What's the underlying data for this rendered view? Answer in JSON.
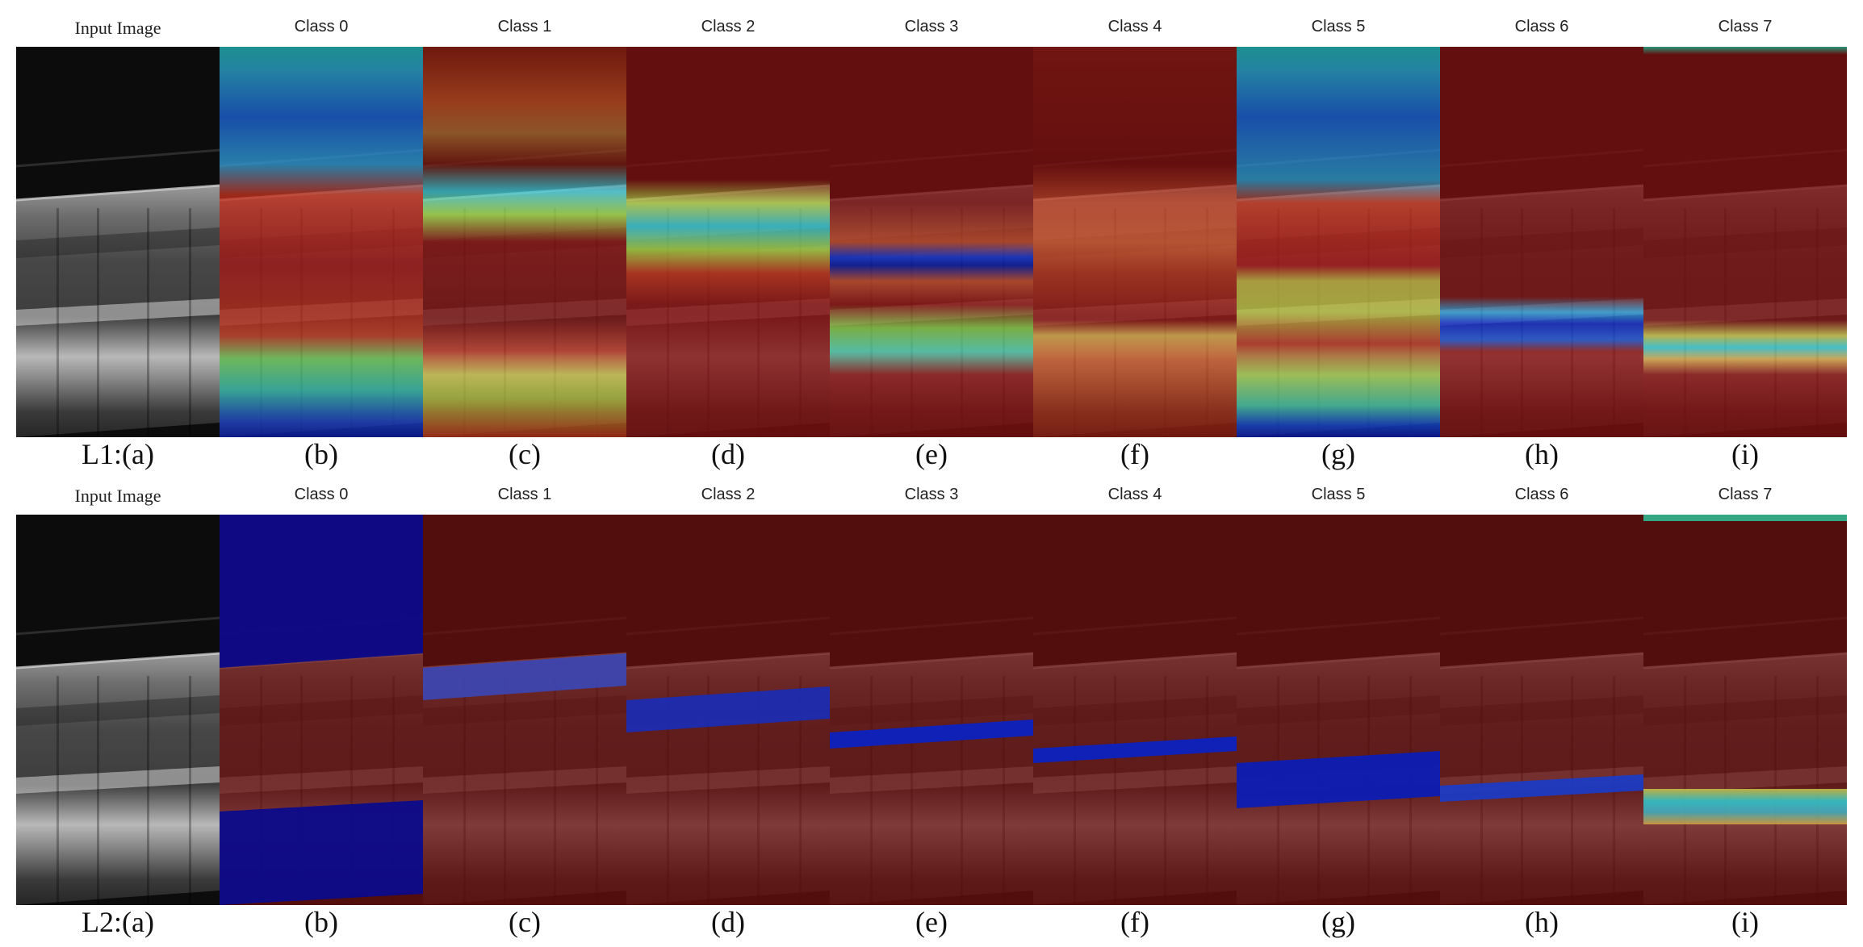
{
  "figure": {
    "rows": [
      {
        "id": "L1",
        "panels": [
          {
            "title": "Input Image",
            "caption": "L1:(a)"
          },
          {
            "title": "Class 0",
            "caption": "(b)"
          },
          {
            "title": "Class 1",
            "caption": "(c)"
          },
          {
            "title": "Class 2",
            "caption": "(d)"
          },
          {
            "title": "Class 3",
            "caption": "(e)"
          },
          {
            "title": "Class 4",
            "caption": "(f)"
          },
          {
            "title": "Class 5",
            "caption": "(g)"
          },
          {
            "title": "Class 6",
            "caption": "(h)"
          },
          {
            "title": "Class 7",
            "caption": "(i)"
          }
        ]
      },
      {
        "id": "L2",
        "panels": [
          {
            "title": "Input Image",
            "caption": "L2:(a)"
          },
          {
            "title": "Class 0",
            "caption": "(b)"
          },
          {
            "title": "Class 1",
            "caption": "(c)"
          },
          {
            "title": "Class 2",
            "caption": "(d)"
          },
          {
            "title": "Class 3",
            "caption": "(e)"
          },
          {
            "title": "Class 4",
            "caption": "(f)"
          },
          {
            "title": "Class 5",
            "caption": "(g)"
          },
          {
            "title": "Class 6",
            "caption": "(h)"
          },
          {
            "title": "Class 7",
            "caption": "(i)"
          }
        ]
      }
    ]
  }
}
